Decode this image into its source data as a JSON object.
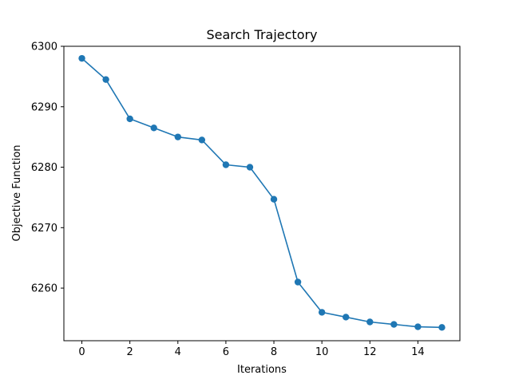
{
  "chart_data": {
    "type": "line",
    "title": "Search Trajectory",
    "xlabel": "Iterations",
    "ylabel": "Objective Function",
    "xlim": [
      -0.75,
      15.75
    ],
    "ylim": [
      6251.3,
      6300
    ],
    "xticks": [
      0,
      2,
      4,
      6,
      8,
      10,
      12,
      14
    ],
    "yticks": [
      6260,
      6270,
      6280,
      6290,
      6300
    ],
    "grid": false,
    "series": [
      {
        "color": "#1f77b4",
        "marker": "circle",
        "x": [
          0,
          1,
          2,
          3,
          4,
          5,
          6,
          7,
          8,
          9,
          10,
          11,
          12,
          13,
          14,
          15
        ],
        "y": [
          6298.0,
          6294.5,
          6288.0,
          6286.5,
          6285.0,
          6284.5,
          6280.4,
          6280.0,
          6274.7,
          6261.0,
          6256.0,
          6255.2,
          6254.4,
          6254.0,
          6253.6,
          6253.5
        ]
      }
    ]
  }
}
